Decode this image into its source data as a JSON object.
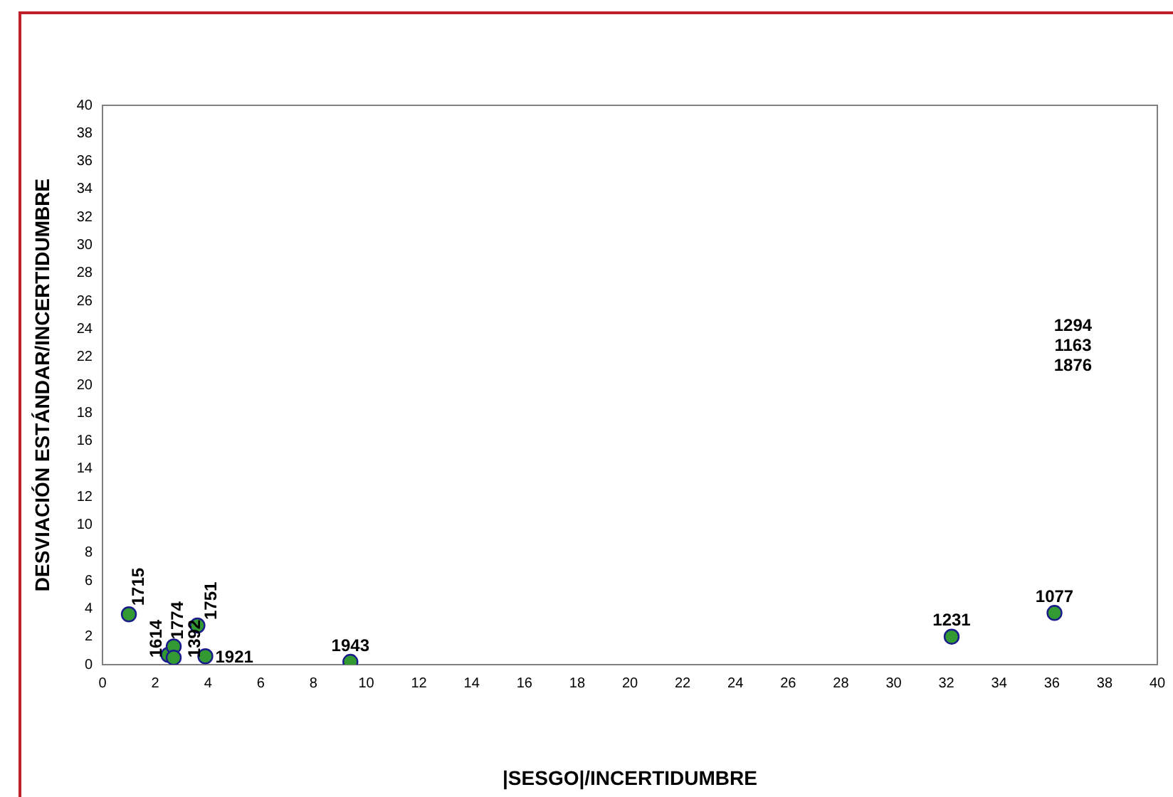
{
  "chart_data": {
    "type": "scatter",
    "xlabel": "|SESGO|/INCERTIDUMBRE",
    "ylabel": "DESVIACIÓN ESTÁNDAR/INCERTIDUMBRE",
    "xlim": [
      0,
      40
    ],
    "xticks": [
      0,
      2,
      4,
      6,
      8,
      10,
      12,
      14,
      16,
      18,
      20,
      22,
      24,
      26,
      28,
      30,
      32,
      34,
      36,
      38,
      40
    ],
    "ylim": [
      0,
      40
    ],
    "yticks": [
      0,
      2,
      4,
      6,
      8,
      10,
      12,
      14,
      16,
      18,
      20,
      22,
      24,
      26,
      28,
      30,
      32,
      34,
      36,
      38,
      40
    ],
    "grid": false,
    "legend": false,
    "marker": "circle",
    "series": [
      {
        "color": "#339933",
        "x": [
          1.0,
          2.5,
          2.7,
          2.7,
          3.6,
          3.9,
          9.4,
          32.2,
          36.1
        ],
        "values": [
          3.6,
          0.7,
          1.3,
          0.5,
          2.8,
          0.6,
          0.2,
          2.0,
          3.7
        ]
      }
    ],
    "annotations": [
      {
        "text": "1715",
        "x": 1.0,
        "y": 3.6
      },
      {
        "text": "1614",
        "x": 2.5,
        "y": 0.7
      },
      {
        "text": "1774",
        "x": 2.7,
        "y": 1.3
      },
      {
        "text": "1392",
        "x": 2.7,
        "y": 0.5
      },
      {
        "text": "1751",
        "x": 3.6,
        "y": 2.8
      },
      {
        "text": "1921",
        "x": 3.9,
        "y": 0.6
      },
      {
        "text": "1943",
        "x": 9.4,
        "y": 0.2
      },
      {
        "text": "1231",
        "x": 32.2,
        "y": 2.0
      },
      {
        "text": "1077",
        "x": 36.1,
        "y": 3.7
      },
      "1294",
      "1163",
      "1876"
    ]
  }
}
